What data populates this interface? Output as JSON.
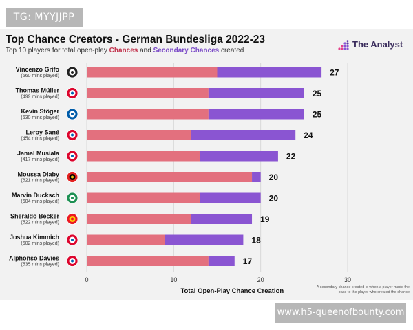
{
  "watermark_top": "TG: MYYJJPP",
  "watermark_bottom": "www.h5-queenofbounty.com",
  "header": {
    "title": "Top Chance Creators - German Bundesliga 2022-23",
    "subtitle_prefix": "Top 10 players for total open-play ",
    "subtitle_chances": "Chances",
    "subtitle_and": " and ",
    "subtitle_secondary": "Secondary Chances",
    "subtitle_suffix": " created"
  },
  "brand": {
    "name": "The Analyst",
    "icon": "analyst-logo-icon"
  },
  "footnote": "A secondary chance created is when a player made the pass to the player who created the chance",
  "colors": {
    "chances": "#e3707e",
    "secondary": "#8a55d2",
    "grid": "#d8d8d8"
  },
  "chart_data": {
    "type": "bar",
    "orientation": "horizontal",
    "stacked": true,
    "title": "Top Chance Creators - German Bundesliga 2022-23",
    "xlabel": "Total Open-Play Chance Creation",
    "xlim": [
      0,
      30
    ],
    "xticks": [
      0,
      10,
      20,
      30
    ],
    "grid": true,
    "categories": [
      "Vincenzo Grifo",
      "Thomas Müller",
      "Kevin Stöger",
      "Leroy Sané",
      "Jamal Musiala",
      "Moussa Diaby",
      "Marvin Ducksch",
      "Sheraldo Becker",
      "Joshua Kimmich",
      "Alphonso Davies"
    ],
    "minutes": [
      "(560 mins played)",
      "(499 mins played)",
      "(630 mins played)",
      "(454 mins played)",
      "(417 mins played)",
      "(621 mins played)",
      "(604 mins played)",
      "(522 mins played)",
      "(602 mins played)",
      "(535 mins played)"
    ],
    "club_icons": [
      "freiburg-crest-icon",
      "bayern-crest-icon",
      "bochum-crest-icon",
      "bayern-crest-icon",
      "bayern-crest-icon",
      "leverkusen-crest-icon",
      "bremen-crest-icon",
      "union-berlin-crest-icon",
      "bayern-crest-icon",
      "bayern-crest-icon"
    ],
    "series": [
      {
        "name": "Chances",
        "values": [
          15,
          14,
          14,
          12,
          13,
          19,
          13,
          12,
          9,
          14
        ]
      },
      {
        "name": "Secondary Chances",
        "values": [
          12,
          11,
          11,
          12,
          9,
          1,
          7,
          7,
          9,
          3
        ]
      }
    ],
    "totals": [
      27,
      25,
      25,
      24,
      22,
      20,
      20,
      19,
      18,
      17
    ]
  }
}
